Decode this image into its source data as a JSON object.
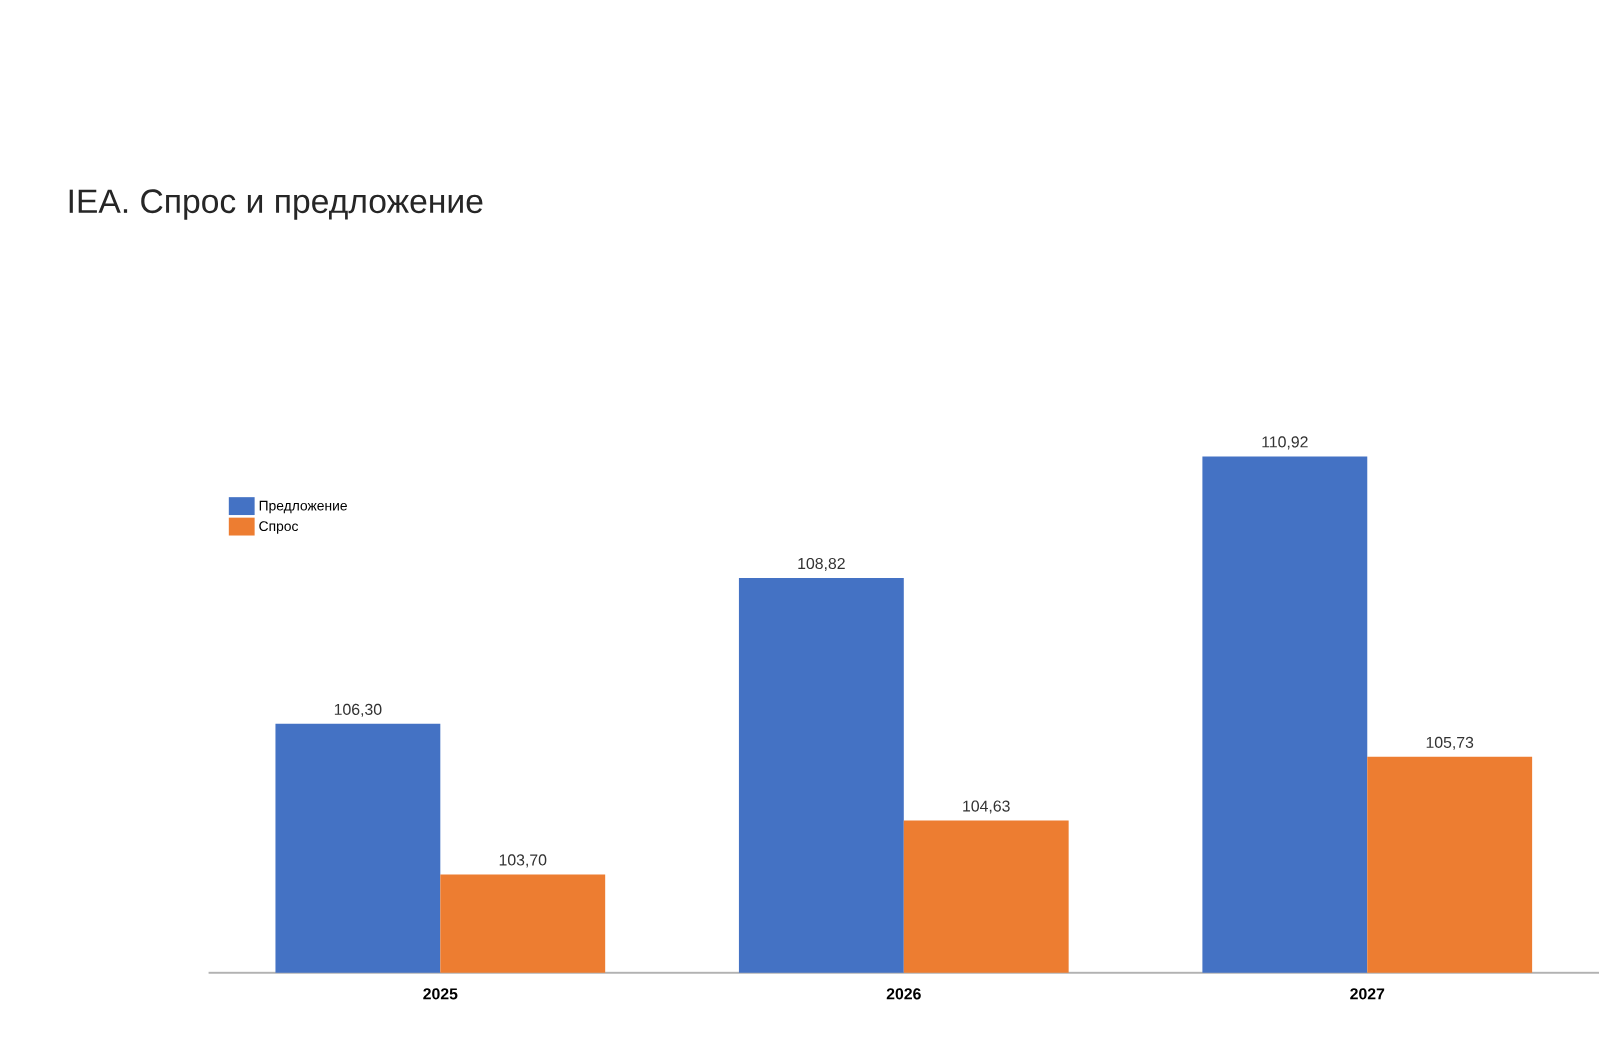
{
  "chart_data": {
    "type": "bar",
    "title": "IEA. Спрос и предложение",
    "categories": [
      "2025",
      "2026",
      "2027"
    ],
    "series": [
      {
        "name": "Предложение",
        "color": "#4472c4",
        "values": [
          106.3,
          108.82,
          110.92
        ],
        "value_labels": [
          "106,30",
          "108,82",
          "110,92"
        ]
      },
      {
        "name": "Спрос",
        "color": "#ed7d31",
        "values": [
          103.7,
          104.63,
          105.73
        ],
        "value_labels": [
          "103,70",
          "104,63",
          "105,73"
        ]
      }
    ],
    "ylim": [
      102,
      110.92
    ],
    "legend": "top left",
    "tick_labels": "x"
  }
}
